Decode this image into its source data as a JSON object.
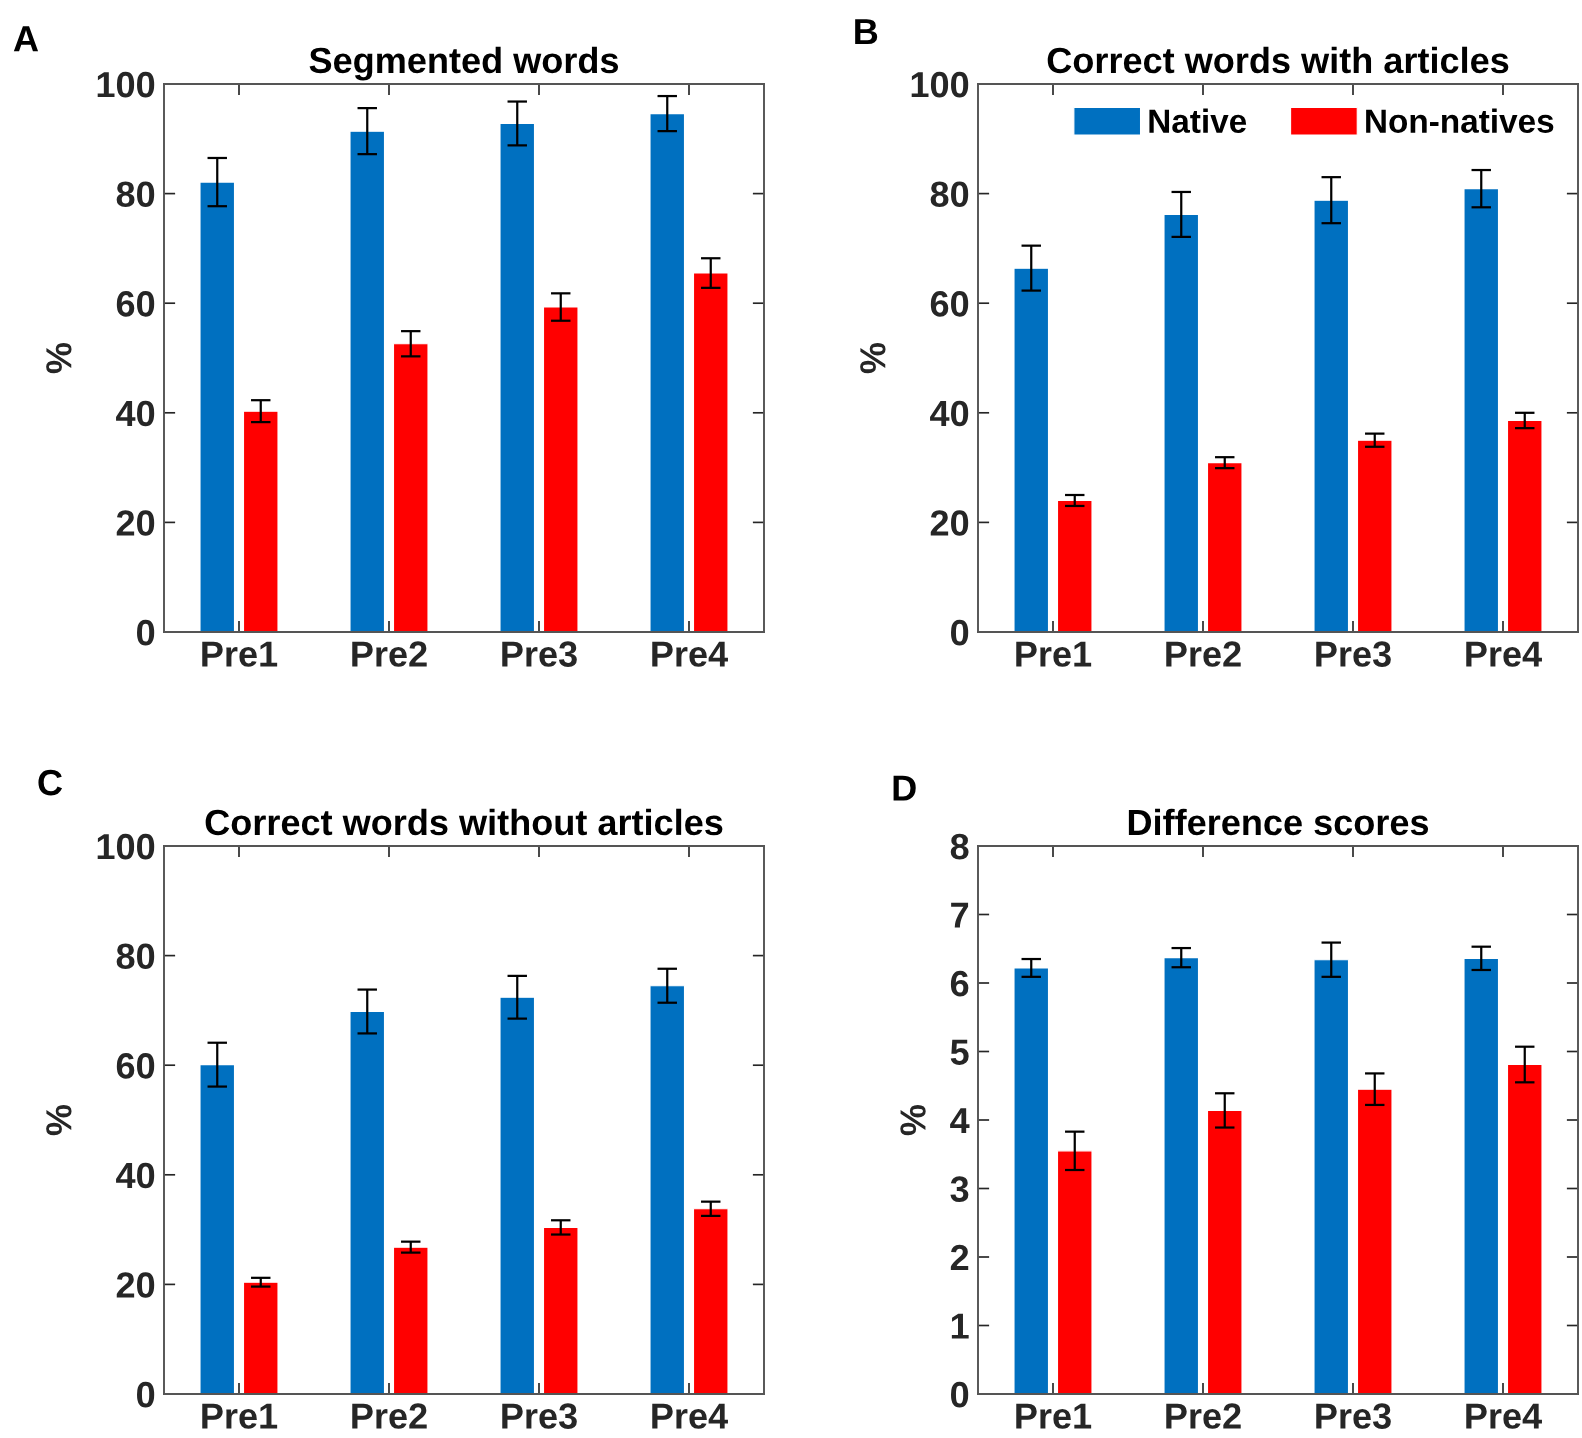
{
  "chart_data": [
    {
      "type": "bar",
      "title": "Segmented words",
      "ylabel": "%",
      "annotations": [
        "A"
      ],
      "categories": [
        "Pre1",
        "Pre2",
        "Pre3",
        "Pre4"
      ],
      "series": [
        {
          "color": "#0070c0",
          "values": [
            82.1,
            91.4,
            92.8,
            94.6
          ],
          "errors": [
            4.4,
            4.2,
            4.0,
            3.2
          ]
        },
        {
          "color": "#ff0000",
          "values": [
            40.3,
            52.6,
            59.3,
            65.5
          ],
          "errors": [
            2.0,
            2.3,
            2.5,
            2.7
          ]
        }
      ],
      "ylim": [
        0,
        100
      ],
      "yticks": [
        0,
        20,
        40,
        60,
        80,
        100
      ]
    },
    {
      "type": "bar",
      "title": "Correct words with articles",
      "ylabel": "%",
      "annotations": [
        "B"
      ],
      "categories": [
        "Pre1",
        "Pre2",
        "Pre3",
        "Pre4"
      ],
      "series": [
        {
          "name": "Native",
          "color": "#0070c0",
          "values": [
            66.4,
            76.2,
            78.8,
            80.9
          ],
          "errors": [
            4.1,
            4.1,
            4.2,
            3.4
          ]
        },
        {
          "name": "Non-natives",
          "color": "#ff0000",
          "values": [
            24.0,
            30.9,
            35.0,
            38.6
          ],
          "errors": [
            1.0,
            1.0,
            1.2,
            1.4
          ]
        }
      ],
      "ylim": [
        0,
        100
      ],
      "yticks": [
        0,
        20,
        40,
        60,
        80,
        100
      ],
      "legend": "top right"
    },
    {
      "type": "bar",
      "title": "Correct words without articles",
      "ylabel": "%",
      "annotations": [
        "C"
      ],
      "categories": [
        "Pre1",
        "Pre2",
        "Pre3",
        "Pre4"
      ],
      "series": [
        {
          "color": "#0070c0",
          "values": [
            60.1,
            69.8,
            72.4,
            74.5
          ],
          "errors": [
            4.0,
            4.0,
            3.9,
            3.1
          ]
        },
        {
          "color": "#ff0000",
          "values": [
            20.4,
            26.8,
            30.4,
            33.8
          ],
          "errors": [
            0.8,
            1.0,
            1.3,
            1.3
          ]
        }
      ],
      "ylim": [
        0,
        100
      ],
      "yticks": [
        0,
        20,
        40,
        60,
        80,
        100
      ]
    },
    {
      "type": "bar",
      "title": "Difference scores",
      "ylabel": "%",
      "annotations": [
        "D"
      ],
      "categories": [
        "Pre1",
        "Pre2",
        "Pre3",
        "Pre4"
      ],
      "series": [
        {
          "color": "#0070c0",
          "values": [
            6.22,
            6.37,
            6.34,
            6.36
          ],
          "errors": [
            0.13,
            0.14,
            0.25,
            0.17
          ]
        },
        {
          "color": "#ff0000",
          "values": [
            3.55,
            4.14,
            4.45,
            4.81
          ],
          "errors": [
            0.28,
            0.25,
            0.23,
            0.26
          ]
        }
      ],
      "ylim": [
        0,
        8
      ],
      "yticks": [
        0,
        1,
        2,
        3,
        4,
        5,
        6,
        7,
        8
      ]
    }
  ]
}
